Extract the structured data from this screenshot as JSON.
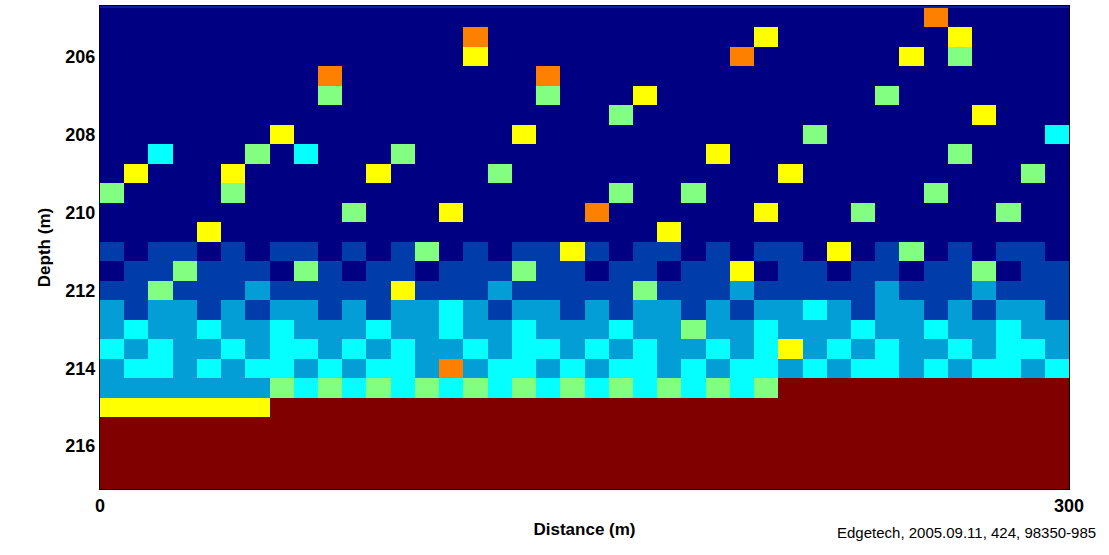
{
  "chart_data": {
    "type": "heatmap",
    "x_label": "Distance (m)",
    "y_label": "Depth (m)",
    "annotations": [
      "Edgetech, 2005.09.11, 424, 98350-985"
    ],
    "color": "Jet",
    "xlim": [
      0,
      300
    ],
    "xticks": [
      0,
      300
    ],
    "ylim": [
      217.1,
      204.7
    ],
    "yticks": [
      206,
      208,
      210,
      212,
      214,
      216
    ],
    "x": [
      3.75,
      11.25,
      18.75,
      26.25,
      33.75,
      41.25,
      48.75,
      56.25,
      63.75,
      71.25,
      78.75,
      86.25,
      93.75,
      101.25,
      108.75,
      116.25,
      123.75,
      131.25,
      138.75,
      146.25,
      153.75,
      161.25,
      168.75,
      176.25,
      183.75,
      191.25,
      198.75,
      206.25,
      213.75,
      221.25,
      228.75,
      236.25,
      243.75,
      251.25,
      258.75,
      266.25,
      273.75,
      281.25,
      288.75,
      296.25
    ],
    "y": [
      205,
      205.5,
      206,
      206.5,
      207,
      207.5,
      208,
      208.5,
      209,
      209.5,
      210,
      210.5,
      211,
      211.5,
      212,
      212.5,
      213,
      213.5,
      214,
      214.5,
      215,
      215.5,
      216,
      216.5,
      217
    ],
    "cells": [
      [
        1,
        1,
        1,
        1,
        1,
        1,
        1,
        1,
        1,
        1,
        1,
        1,
        1,
        1,
        1,
        1,
        1,
        1,
        1,
        1,
        1,
        1,
        1,
        1,
        1,
        1,
        1,
        1,
        1,
        1,
        1,
        1,
        1,
        1,
        7,
        1,
        1,
        1,
        1,
        1
      ],
      [
        1,
        1,
        1,
        1,
        1,
        1,
        1,
        1,
        1,
        1,
        1,
        1,
        1,
        1,
        1,
        7,
        1,
        1,
        1,
        1,
        1,
        1,
        1,
        1,
        1,
        1,
        1,
        6,
        1,
        1,
        1,
        1,
        1,
        1,
        1,
        6,
        1,
        1,
        1,
        1
      ],
      [
        1,
        1,
        1,
        1,
        1,
        1,
        1,
        1,
        1,
        1,
        1,
        1,
        1,
        1,
        1,
        6,
        1,
        1,
        1,
        1,
        1,
        1,
        1,
        1,
        1,
        1,
        7,
        1,
        1,
        1,
        1,
        1,
        1,
        6,
        1,
        5,
        1,
        1,
        1,
        1
      ],
      [
        1,
        1,
        1,
        1,
        1,
        1,
        1,
        1,
        1,
        7,
        1,
        1,
        1,
        1,
        1,
        1,
        1,
        1,
        7,
        1,
        1,
        1,
        1,
        1,
        1,
        1,
        1,
        1,
        1,
        1,
        1,
        1,
        1,
        1,
        1,
        1,
        1,
        1,
        1,
        1
      ],
      [
        1,
        1,
        1,
        1,
        1,
        1,
        1,
        1,
        1,
        5,
        1,
        1,
        1,
        1,
        1,
        1,
        1,
        1,
        5,
        1,
        1,
        1,
        6,
        1,
        1,
        1,
        1,
        1,
        1,
        1,
        1,
        1,
        5,
        1,
        1,
        1,
        1,
        1,
        1,
        1
      ],
      [
        1,
        1,
        1,
        1,
        1,
        1,
        1,
        1,
        1,
        1,
        1,
        1,
        1,
        1,
        1,
        1,
        1,
        1,
        1,
        1,
        1,
        5,
        1,
        1,
        1,
        1,
        1,
        1,
        1,
        1,
        1,
        1,
        1,
        1,
        1,
        1,
        6,
        1,
        1,
        1
      ],
      [
        1,
        1,
        1,
        1,
        1,
        1,
        1,
        6,
        1,
        1,
        1,
        1,
        1,
        1,
        1,
        1,
        1,
        6,
        1,
        1,
        1,
        1,
        1,
        1,
        1,
        1,
        1,
        1,
        1,
        5,
        1,
        1,
        1,
        1,
        1,
        1,
        1,
        1,
        1,
        4
      ],
      [
        1,
        1,
        4,
        1,
        1,
        1,
        5,
        1,
        4,
        1,
        1,
        1,
        5,
        1,
        1,
        1,
        1,
        1,
        1,
        1,
        1,
        1,
        1,
        1,
        1,
        6,
        1,
        1,
        1,
        1,
        1,
        1,
        1,
        1,
        1,
        5,
        1,
        1,
        1,
        1
      ],
      [
        1,
        6,
        1,
        1,
        1,
        6,
        1,
        1,
        1,
        1,
        1,
        6,
        1,
        1,
        1,
        1,
        5,
        1,
        1,
        1,
        1,
        1,
        1,
        1,
        1,
        1,
        1,
        1,
        6,
        1,
        1,
        1,
        1,
        1,
        1,
        1,
        1,
        1,
        5,
        1
      ],
      [
        5,
        1,
        1,
        1,
        1,
        5,
        1,
        1,
        1,
        1,
        1,
        1,
        1,
        1,
        1,
        1,
        1,
        1,
        1,
        1,
        1,
        5,
        1,
        1,
        5,
        1,
        1,
        1,
        1,
        1,
        1,
        1,
        1,
        1,
        5,
        1,
        1,
        1,
        1,
        1
      ],
      [
        1,
        1,
        1,
        1,
        1,
        1,
        1,
        1,
        1,
        1,
        5,
        1,
        1,
        1,
        6,
        1,
        1,
        1,
        1,
        1,
        7,
        1,
        1,
        1,
        1,
        1,
        1,
        6,
        1,
        1,
        1,
        5,
        1,
        1,
        1,
        1,
        1,
        5,
        1,
        1
      ],
      [
        1,
        1,
        1,
        1,
        6,
        1,
        1,
        1,
        1,
        1,
        1,
        1,
        1,
        1,
        1,
        1,
        1,
        1,
        1,
        1,
        1,
        1,
        1,
        6,
        1,
        1,
        1,
        1,
        1,
        1,
        1,
        1,
        1,
        1,
        1,
        1,
        1,
        1,
        1,
        1
      ],
      [
        2,
        1,
        2,
        2,
        1,
        2,
        1,
        2,
        2,
        1,
        2,
        1,
        2,
        5,
        1,
        2,
        1,
        2,
        2,
        6,
        2,
        1,
        2,
        2,
        1,
        2,
        1,
        2,
        2,
        1,
        6,
        1,
        2,
        5,
        1,
        2,
        1,
        2,
        2,
        1
      ],
      [
        1,
        2,
        2,
        5,
        2,
        2,
        2,
        1,
        5,
        2,
        1,
        2,
        2,
        1,
        2,
        2,
        2,
        5,
        2,
        2,
        1,
        2,
        2,
        1,
        2,
        2,
        6,
        1,
        2,
        2,
        1,
        2,
        2,
        1,
        2,
        2,
        5,
        1,
        2,
        2
      ],
      [
        2,
        2,
        5,
        2,
        2,
        2,
        3,
        2,
        2,
        2,
        2,
        2,
        6,
        2,
        2,
        2,
        3,
        2,
        2,
        2,
        2,
        2,
        5,
        2,
        2,
        2,
        3,
        2,
        2,
        2,
        2,
        2,
        3,
        2,
        2,
        2,
        3,
        2,
        2,
        2
      ],
      [
        3,
        2,
        3,
        3,
        2,
        3,
        2,
        3,
        3,
        2,
        3,
        2,
        3,
        3,
        4,
        3,
        2,
        3,
        3,
        2,
        3,
        2,
        3,
        3,
        2,
        3,
        2,
        3,
        3,
        4,
        3,
        2,
        3,
        3,
        2,
        3,
        2,
        3,
        3,
        2
      ],
      [
        3,
        4,
        3,
        3,
        4,
        3,
        3,
        4,
        3,
        3,
        3,
        4,
        3,
        3,
        4,
        3,
        3,
        4,
        3,
        3,
        3,
        4,
        3,
        3,
        5,
        3,
        3,
        4,
        3,
        3,
        3,
        4,
        3,
        3,
        4,
        3,
        3,
        4,
        3,
        3
      ],
      [
        4,
        3,
        4,
        3,
        3,
        4,
        3,
        4,
        4,
        3,
        4,
        3,
        4,
        3,
        3,
        4,
        3,
        4,
        4,
        3,
        4,
        3,
        4,
        3,
        3,
        4,
        3,
        4,
        6,
        3,
        4,
        3,
        4,
        3,
        3,
        4,
        3,
        4,
        4,
        3
      ],
      [
        3,
        4,
        4,
        3,
        4,
        3,
        4,
        4,
        3,
        4,
        3,
        4,
        4,
        3,
        7,
        3,
        4,
        4,
        3,
        4,
        3,
        4,
        4,
        3,
        4,
        3,
        4,
        4,
        3,
        4,
        3,
        4,
        4,
        3,
        4,
        3,
        4,
        4,
        3,
        4
      ],
      [
        3,
        3,
        3,
        3,
        3,
        3,
        3,
        5,
        4,
        5,
        4,
        5,
        4,
        5,
        4,
        5,
        4,
        5,
        4,
        5,
        4,
        5,
        4,
        5,
        4,
        5,
        4,
        5,
        9,
        9,
        9,
        9,
        9,
        9,
        9,
        9,
        9,
        9,
        9,
        9
      ],
      [
        6,
        6,
        6,
        6,
        6,
        6,
        6,
        9,
        9,
        9,
        9,
        9,
        9,
        9,
        9,
        9,
        9,
        9,
        9,
        9,
        9,
        9,
        9,
        9,
        9,
        9,
        9,
        9,
        9,
        9,
        9,
        9,
        9,
        9,
        9,
        9,
        9,
        9,
        9,
        9
      ],
      [
        9,
        9,
        9,
        9,
        9,
        9,
        9,
        9,
        9,
        9,
        9,
        9,
        9,
        9,
        9,
        9,
        9,
        9,
        9,
        9,
        9,
        9,
        9,
        9,
        9,
        9,
        9,
        9,
        9,
        9,
        9,
        9,
        9,
        9,
        9,
        9,
        9,
        9,
        9,
        9
      ],
      [
        9,
        9,
        9,
        9,
        9,
        9,
        9,
        9,
        9,
        9,
        9,
        9,
        9,
        9,
        9,
        9,
        9,
        9,
        9,
        9,
        9,
        9,
        9,
        9,
        9,
        9,
        9,
        9,
        9,
        9,
        9,
        9,
        9,
        9,
        9,
        9,
        9,
        9,
        9,
        9
      ],
      [
        9,
        9,
        9,
        9,
        9,
        9,
        9,
        9,
        9,
        9,
        9,
        9,
        9,
        9,
        9,
        9,
        9,
        9,
        9,
        9,
        9,
        9,
        9,
        9,
        9,
        9,
        9,
        9,
        9,
        9,
        9,
        9,
        9,
        9,
        9,
        9,
        9,
        9,
        9,
        9
      ],
      [
        9,
        9,
        9,
        9,
        9,
        9,
        9,
        9,
        9,
        9,
        9,
        9,
        9,
        9,
        9,
        9,
        9,
        9,
        9,
        9,
        9,
        9,
        9,
        9,
        9,
        9,
        9,
        9,
        9,
        9,
        9,
        9,
        9,
        9,
        9,
        9,
        9,
        9,
        9,
        9
      ]
    ]
  }
}
